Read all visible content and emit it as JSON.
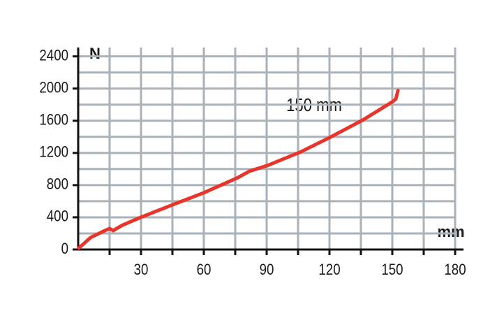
{
  "chart_data": {
    "type": "line",
    "y_label": "N",
    "x_label": "mm",
    "annotation": "150 mm",
    "x": [
      0.3,
      6,
      12.7,
      15,
      16.7,
      21,
      29,
      46,
      60,
      76,
      82,
      91,
      106,
      120,
      136,
      150,
      151.7,
      152.7
    ],
    "series": [
      {
        "color": "#e8352b",
        "values": [
          17,
          150,
          235,
          260,
          235,
          300,
          390,
          565,
          705,
          890,
          975,
          1050,
          1210,
          1390,
          1610,
          1835,
          1870,
          1975
        ]
      }
    ],
    "xlim": [
      0,
      184
    ],
    "ylim": [
      0,
      2510
    ],
    "xticks": [
      30,
      60,
      90,
      120,
      150,
      180
    ],
    "x_minor_ticks": [
      15,
      45,
      75,
      105,
      135,
      165
    ],
    "yticks": [
      0,
      400,
      800,
      1200,
      1600,
      2000,
      2400
    ],
    "y_minor_ticks": [
      200,
      600,
      1000,
      1400,
      1800,
      2200
    ],
    "grid": true,
    "grid_color": "#a9b1b9"
  }
}
